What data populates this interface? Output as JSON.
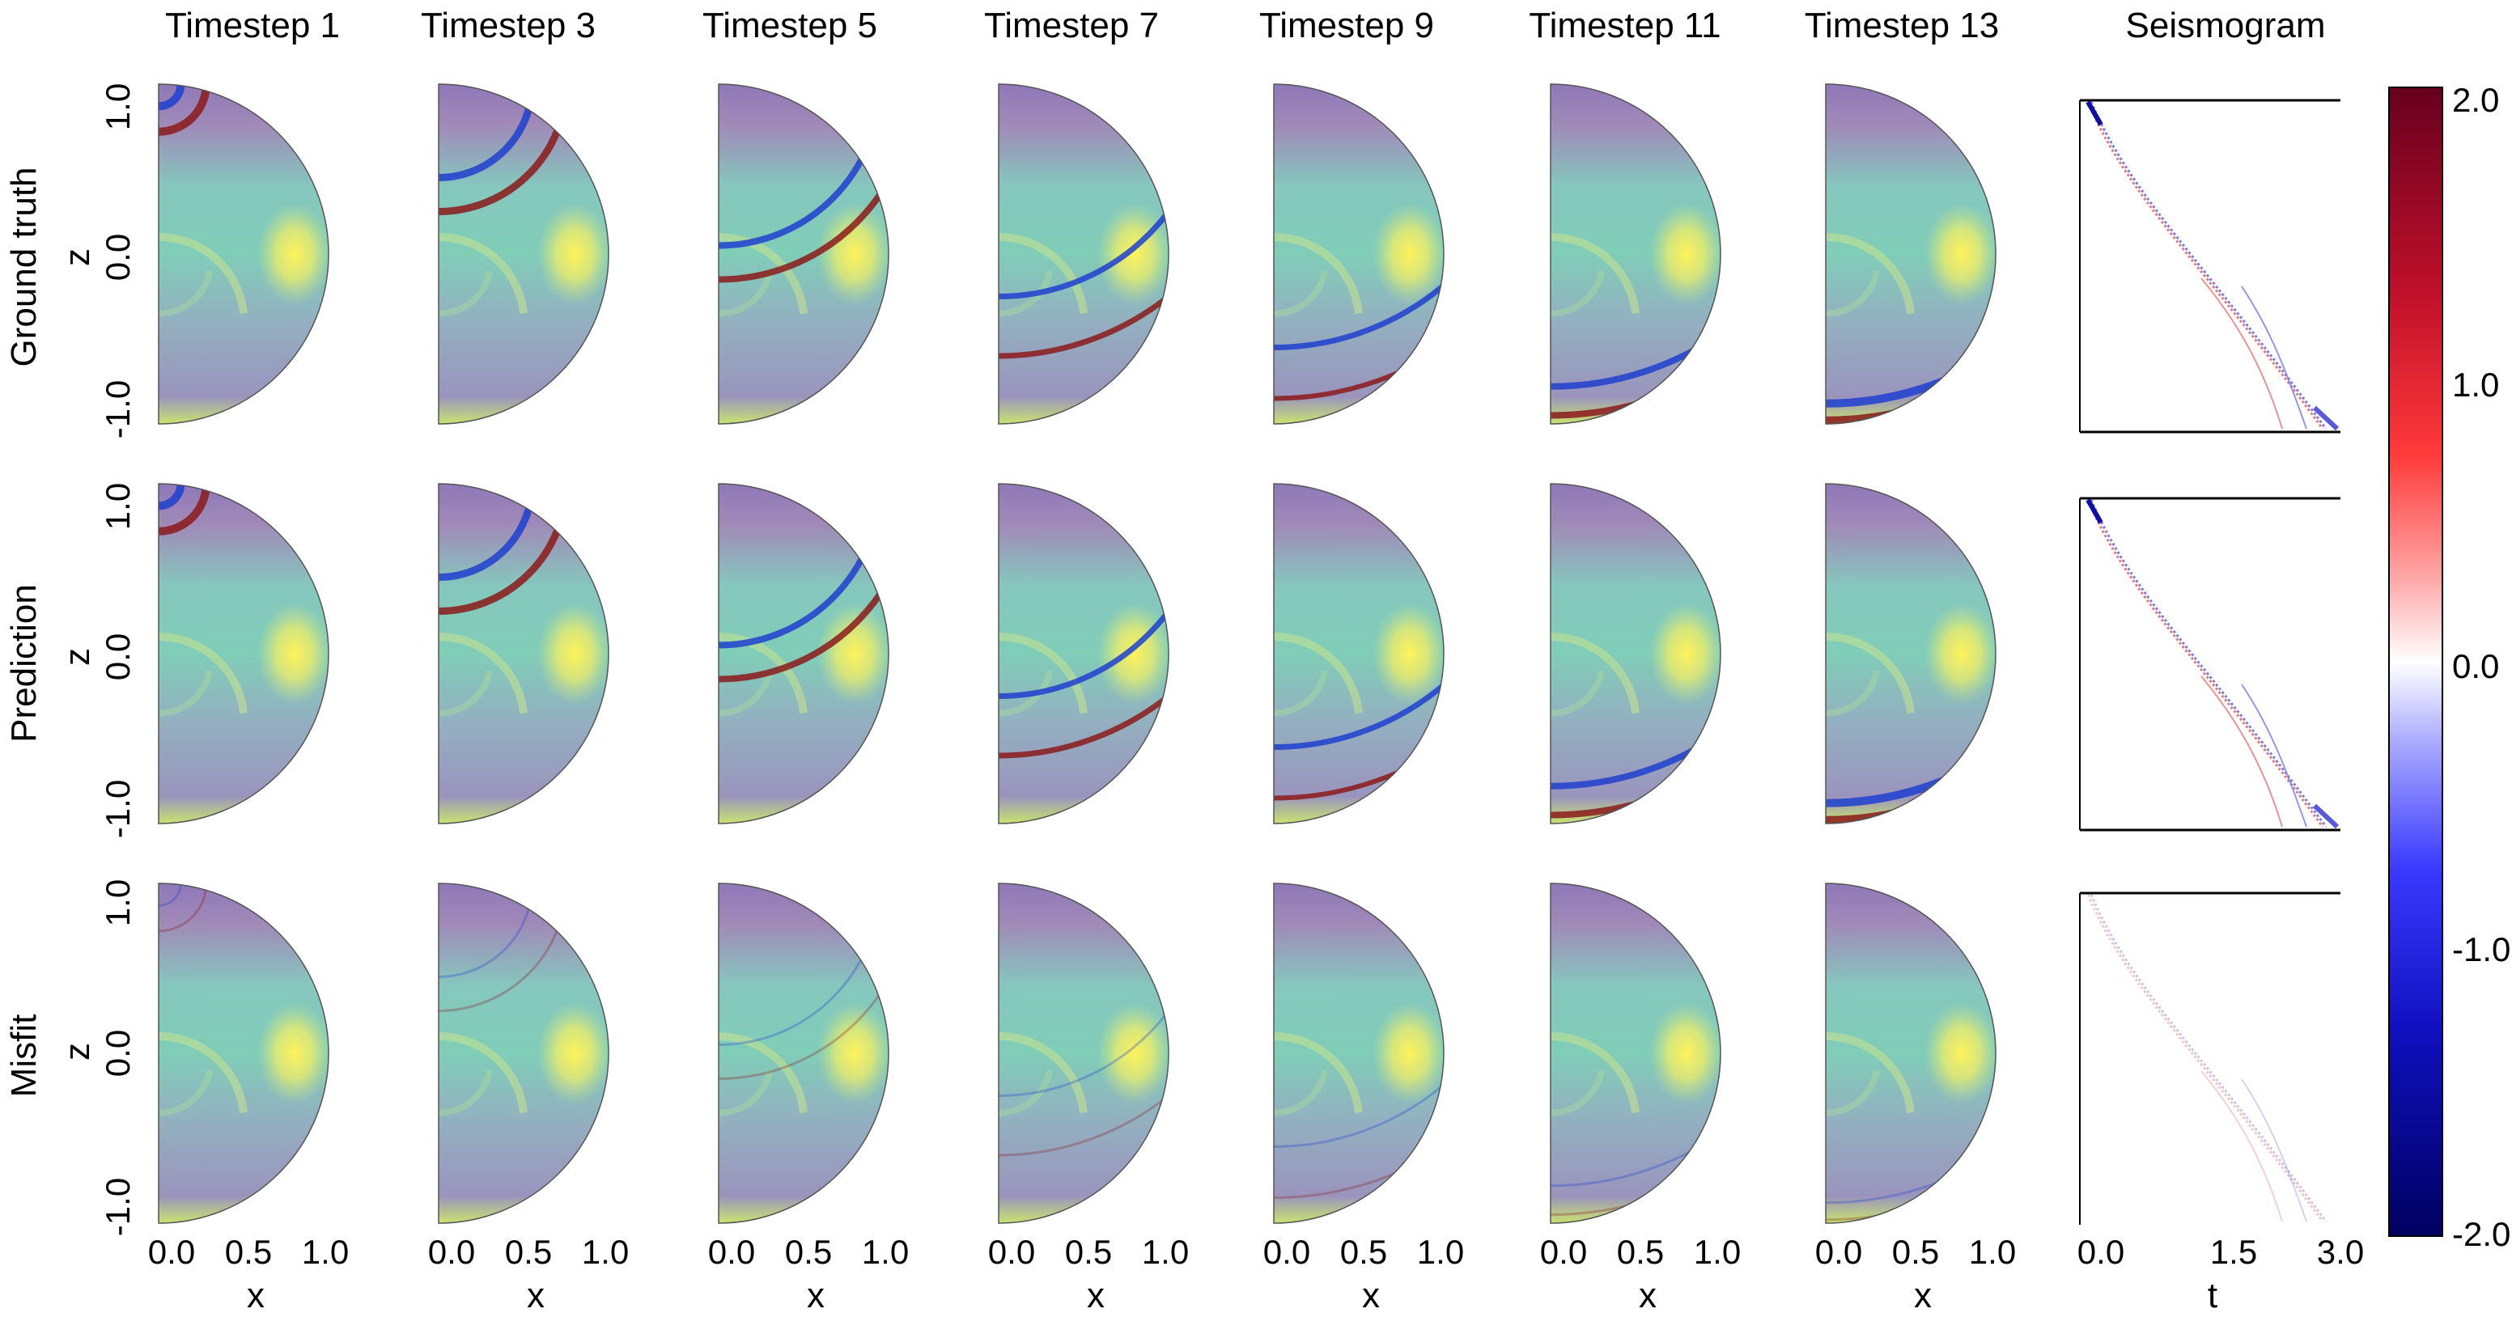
{
  "column_titles": [
    "Timestep 1",
    "Timestep 3",
    "Timestep 5",
    "Timestep 7",
    "Timestep 9",
    "Timestep 11",
    "Timestep 13"
  ],
  "seismogram_title": "Seismogram",
  "row_labels": [
    "Ground truth",
    "Prediction",
    "Misfit"
  ],
  "colors": {
    "background_low": "#8a7fb0",
    "background_mid": "#7fcfbb",
    "background_high": "#f5ec5c",
    "wave_positive": "#8b1a1a",
    "wave_negative": "#1e3fcf",
    "colorbar_top": "#67001f",
    "colorbar_bottom": "#000060"
  },
  "chart_data": [
    {
      "type": "heatmap",
      "name": "wavefield panels",
      "x_axis": {
        "label": "x",
        "ticks": [
          "0.0",
          "0.5",
          "1.0"
        ],
        "range": [
          0,
          1
        ]
      },
      "z_axis": {
        "label": "z",
        "ticks": [
          "1.0",
          "0.0",
          "-1.0"
        ],
        "range": [
          -1,
          1
        ]
      },
      "timesteps": [
        1,
        3,
        5,
        7,
        9,
        11,
        13
      ],
      "rows": [
        "Ground truth",
        "Prediction",
        "Misfit"
      ]
    },
    {
      "type": "heatmap",
      "name": "seismogram panels",
      "x_axis": {
        "label": "t",
        "ticks": [
          "0.0",
          "1.5",
          "3.0"
        ],
        "range": [
          0,
          3
        ]
      },
      "rows": [
        "Ground truth",
        "Prediction",
        "Misfit"
      ]
    },
    {
      "type": "colorbar",
      "ticks": [
        "2.0",
        "1.0",
        "0.0",
        "-1.0",
        "-2.0"
      ],
      "range": [
        -2,
        2
      ]
    }
  ]
}
